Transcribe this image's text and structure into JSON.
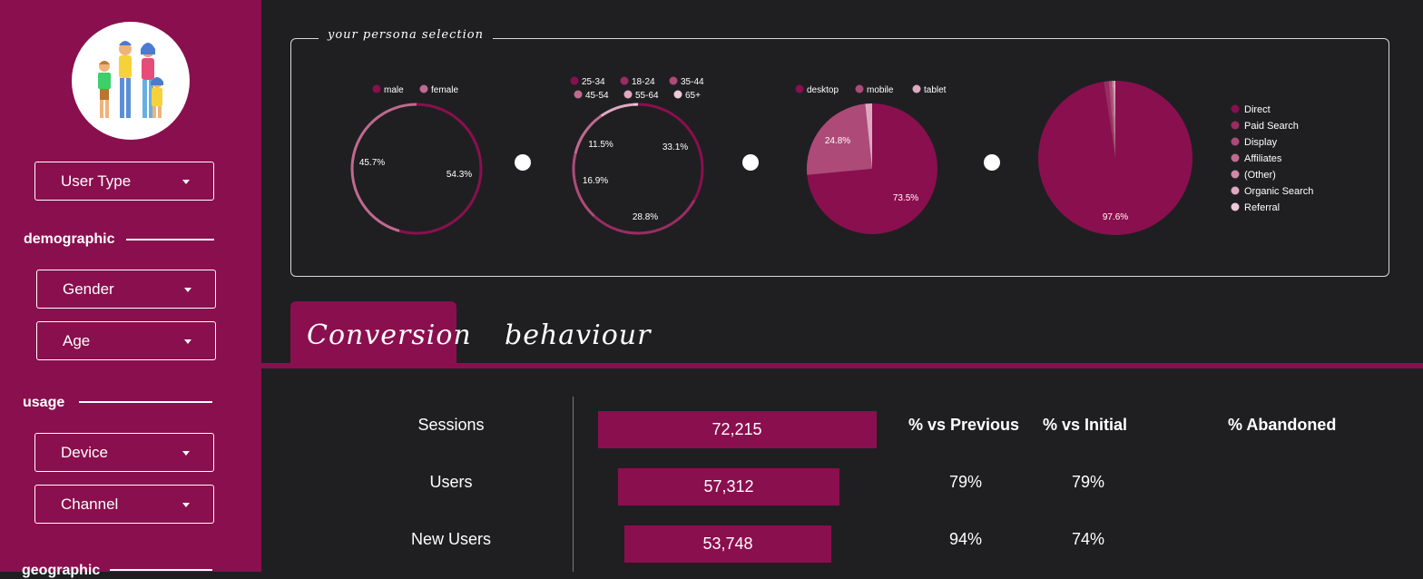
{
  "sidebar": {
    "user_type": "User Type",
    "sections": {
      "demographic": "demographic",
      "usage": "usage",
      "geographic": "geographic"
    },
    "gender": "Gender",
    "age": "Age",
    "device": "Device",
    "channel": "Channel"
  },
  "persona": {
    "title": "your persona selection",
    "gender_chart": {
      "legend": [
        "male",
        "female"
      ],
      "labels": [
        "54.3%",
        "45.7%"
      ]
    },
    "age_chart": {
      "legend": [
        "25-34",
        "18-24",
        "35-44",
        "45-54",
        "55-64",
        "65+"
      ],
      "labels": [
        "33.1%",
        "28.8%",
        "16.9%",
        "11.5%"
      ]
    },
    "device_chart": {
      "legend": [
        "desktop",
        "mobile",
        "tablet"
      ],
      "labels": [
        "73.5%",
        "24.8%"
      ]
    },
    "channel_chart": {
      "legend": [
        "Direct",
        "Paid Search",
        "Display",
        "Affiliates",
        "(Other)",
        "Organic Search",
        "Referral"
      ],
      "labels": [
        "97.6%"
      ]
    }
  },
  "chart_data": [
    {
      "type": "pie",
      "categories": [
        "male",
        "female"
      ],
      "values": [
        54.3,
        45.7
      ]
    },
    {
      "type": "pie",
      "categories": [
        "25-34",
        "18-24",
        "35-44",
        "45-54",
        "55-64",
        "65+"
      ],
      "values": [
        33.1,
        28.8,
        16.9,
        11.5,
        8.5,
        1.2
      ]
    },
    {
      "type": "pie",
      "categories": [
        "desktop",
        "mobile",
        "tablet"
      ],
      "values": [
        73.5,
        24.8,
        1.7
      ]
    },
    {
      "type": "pie",
      "categories": [
        "Direct",
        "Paid Search",
        "Display",
        "Affiliates",
        "(Other)",
        "Organic Search",
        "Referral"
      ],
      "values": [
        97.6,
        1.0,
        0.6,
        0.3,
        0.2,
        0.2,
        0.1
      ]
    },
    {
      "type": "bar",
      "categories": [
        "Sessions",
        "Users",
        "New Users"
      ],
      "values": [
        72215,
        57312,
        53748
      ]
    }
  ],
  "colors": {
    "accent": "#8a0f4e",
    "palette": [
      "#8a0f4e",
      "#9b2c62",
      "#ad4a78",
      "#bf6a8f",
      "#cf8aa8",
      "#dea9c0",
      "#edcad9"
    ],
    "background": "#1f1f22"
  },
  "tabs": {
    "conversion": "Conversion",
    "behaviour": "behaviour"
  },
  "funnel": {
    "rows": [
      {
        "label": "Sessions",
        "value": "72,215",
        "vs_previous": "",
        "vs_initial": ""
      },
      {
        "label": "Users",
        "value": "57,312",
        "vs_previous": "79%",
        "vs_initial": "79%"
      },
      {
        "label": "New Users",
        "value": "53,748",
        "vs_previous": "94%",
        "vs_initial": "74%"
      }
    ],
    "headers": {
      "vs_previous": "% vs Previous",
      "vs_initial": "% vs Initial",
      "abandoned": "% Abandoned"
    }
  },
  "icons": {
    "avatar": "family-icon",
    "dropdown": "caret-down-icon",
    "separator": "dot-icon"
  }
}
